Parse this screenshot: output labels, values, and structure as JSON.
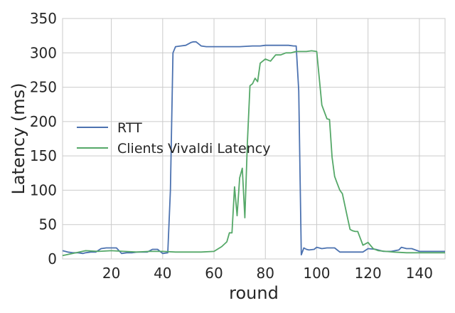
{
  "chart_data": {
    "type": "line",
    "title": "",
    "xlabel": "round",
    "ylabel": "Latency (ms)",
    "xlim": [
      1,
      150
    ],
    "ylim": [
      0,
      350
    ],
    "xticks": [
      20,
      40,
      60,
      80,
      100,
      120,
      140
    ],
    "yticks": [
      0,
      50,
      100,
      150,
      200,
      250,
      300,
      350
    ],
    "grid": true,
    "legend_position": "center-left",
    "series": [
      {
        "name": "RTT",
        "color": "#4c72b0",
        "x": [
          1,
          3,
          5,
          7,
          9,
          10,
          12,
          14,
          16,
          18,
          20,
          22,
          24,
          26,
          28,
          30,
          32,
          34,
          36,
          38,
          40,
          42,
          43,
          44,
          45,
          47,
          49,
          51,
          52,
          53,
          55,
          57,
          60,
          65,
          70,
          75,
          78,
          80,
          85,
          89,
          91,
          92,
          93,
          94,
          95,
          96,
          97,
          99,
          100,
          102,
          104,
          106,
          107,
          109,
          111,
          113,
          115,
          118,
          120,
          123,
          126,
          129,
          132,
          133,
          135,
          137,
          140,
          143,
          145,
          150
        ],
        "y": [
          12,
          10,
          9,
          9,
          8,
          9,
          10,
          10,
          15,
          16,
          16,
          16,
          8,
          9,
          9,
          10,
          10,
          10,
          14,
          14,
          8,
          9,
          100,
          300,
          309,
          310,
          311,
          315,
          316,
          316,
          310,
          309,
          309,
          309,
          309,
          310,
          310,
          311,
          311,
          311,
          310,
          310,
          245,
          6,
          16,
          14,
          13,
          14,
          17,
          15,
          16,
          16,
          16,
          10,
          10,
          10,
          10,
          10,
          15,
          14,
          11,
          11,
          13,
          17,
          15,
          15,
          11,
          11,
          11,
          11
        ]
      },
      {
        "name": "Clients Vivaldi Latency",
        "color": "#55a868",
        "x": [
          1,
          5,
          10,
          15,
          20,
          25,
          30,
          35,
          40,
          45,
          50,
          55,
          60,
          63,
          65,
          66,
          67,
          68,
          69,
          70,
          71,
          72,
          73,
          74,
          75,
          76,
          77,
          78,
          80,
          82,
          84,
          86,
          88,
          90,
          92,
          94,
          96,
          98,
          100,
          102,
          104,
          105,
          106,
          107,
          108,
          109,
          110,
          112,
          113,
          114,
          115,
          116,
          118,
          120,
          122,
          124,
          127,
          130,
          135,
          140,
          145,
          150
        ],
        "y": [
          5,
          8,
          12,
          11,
          12,
          11,
          10,
          11,
          11,
          10,
          10,
          10,
          11,
          18,
          25,
          38,
          38,
          105,
          63,
          118,
          132,
          60,
          170,
          252,
          255,
          263,
          258,
          285,
          291,
          288,
          297,
          297,
          300,
          300,
          302,
          302,
          302,
          303,
          302,
          224,
          204,
          203,
          148,
          120,
          110,
          100,
          95,
          60,
          43,
          41,
          40,
          40,
          20,
          24,
          15,
          12,
          11,
          10,
          9,
          9,
          9,
          9
        ]
      }
    ]
  }
}
